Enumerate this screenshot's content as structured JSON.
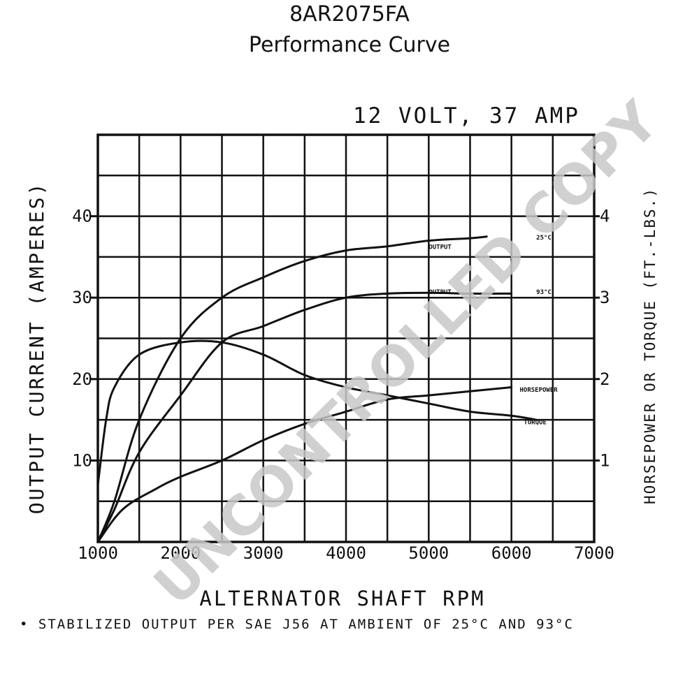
{
  "header": {
    "title": "8AR2075FA",
    "subtitle": "Performance Curve"
  },
  "watermark": "UNCONTROLLED COPY",
  "chart_data": {
    "type": "line",
    "rating_label": "12 VOLT, 37 AMP",
    "xlabel": "ALTERNATOR SHAFT RPM",
    "ylabel_left": "OUTPUT CURRENT (AMPERES)",
    "ylabel_right": "HORSEPOWER OR TORQUE (FT.-LBS.)",
    "footnote": "• STABILIZED OUTPUT PER SAE J56 AT AMBIENT OF 25°C AND 93°C",
    "xlim": [
      1000,
      7000
    ],
    "ylim": [
      0,
      50
    ],
    "ylim_right": [
      0,
      5
    ],
    "x_ticks": [
      1000,
      2000,
      3000,
      4000,
      5000,
      6000,
      7000
    ],
    "x_tick_labels": [
      "1000",
      "2000",
      "3000",
      "4000",
      "5000",
      "6000",
      "7000"
    ],
    "y_ticks_left": [
      10,
      20,
      30,
      40
    ],
    "y_tick_labels_left": [
      "10",
      "20",
      "30",
      "40"
    ],
    "y_ticks_right": [
      1,
      2,
      3,
      4
    ],
    "y_tick_labels_right": [
      "1",
      "2",
      "3",
      "4"
    ],
    "grid": true,
    "grid_x_step": 500,
    "grid_y_step": 5,
    "series": [
      {
        "name": "OUTPUT 25°C",
        "axis": "left",
        "x": [
          1000,
          1200,
          1500,
          2000,
          2500,
          3000,
          3500,
          4000,
          4500,
          5000,
          5500,
          5700
        ],
        "y": [
          0,
          5,
          15,
          25,
          30,
          32.5,
          34.5,
          35.8,
          36.3,
          37,
          37.3,
          37.5
        ]
      },
      {
        "name": "OUTPUT 93°C",
        "axis": "left",
        "x": [
          1000,
          1200,
          1500,
          2000,
          2500,
          3000,
          3500,
          4000,
          4500,
          5000,
          5500,
          6000
        ],
        "y": [
          0,
          4,
          11,
          18,
          24.5,
          26.5,
          28.5,
          30,
          30.5,
          30.6,
          30.5,
          30.5
        ]
      },
      {
        "name": "TORQUE",
        "axis": "right",
        "x": [
          1000,
          1100,
          1200,
          1500,
          2000,
          2500,
          3000,
          3500,
          4000,
          4500,
          5000,
          5500,
          6000,
          6300
        ],
        "y": [
          0.7,
          1.5,
          1.9,
          2.3,
          2.45,
          2.45,
          2.3,
          2.05,
          1.9,
          1.8,
          1.7,
          1.6,
          1.55,
          1.5
        ]
      },
      {
        "name": "HORSEPOWER",
        "axis": "right",
        "x": [
          1000,
          1300,
          1700,
          2000,
          2500,
          3000,
          3500,
          4000,
          4500,
          5000,
          5500,
          6000
        ],
        "y": [
          0,
          0.4,
          0.65,
          0.8,
          1.0,
          1.25,
          1.45,
          1.6,
          1.75,
          1.8,
          1.85,
          1.9
        ]
      }
    ],
    "annotations": [
      {
        "series": "OUTPUT 25°C",
        "text": "OUTPUT",
        "x": 5000,
        "y": 36.3
      },
      {
        "series": "OUTPUT 25°C",
        "text": "25°C",
        "x": 6300,
        "y": 37.5
      },
      {
        "series": "OUTPUT 93°C",
        "text": "OUTPUT",
        "x": 5000,
        "y": 30.8
      },
      {
        "series": "OUTPUT 93°C",
        "text": "93°C",
        "x": 6300,
        "y": 30.8
      },
      {
        "series": "HORSEPOWER",
        "text": "HORSEPOWER",
        "x": 6100,
        "y": 1.88
      },
      {
        "series": "TORQUE",
        "text": "TORQUE",
        "x": 6150,
        "y": 1.48
      }
    ]
  }
}
